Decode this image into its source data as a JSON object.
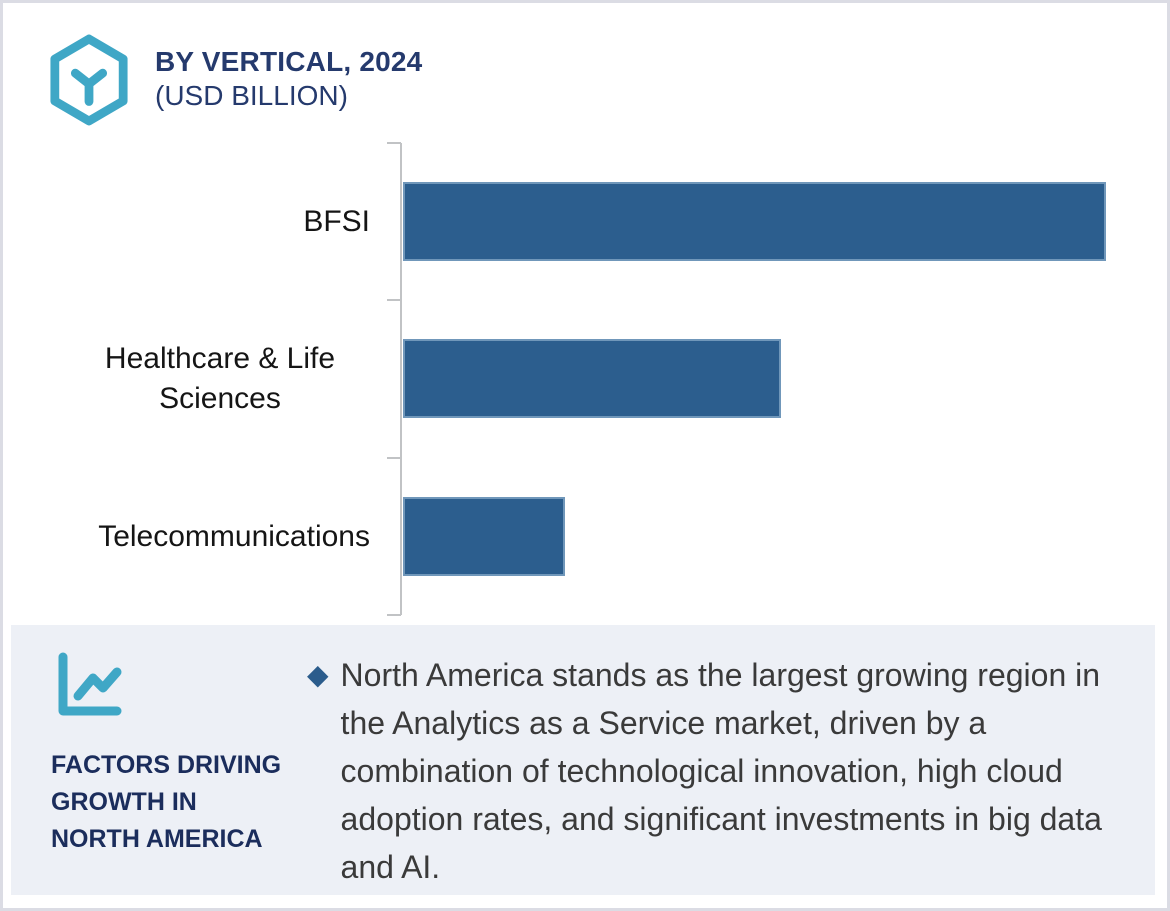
{
  "header": {
    "title_line1": "BY VERTICAL, 2024",
    "title_line2": "(USD BILLION)",
    "title_color": "#253a6d",
    "logo_icon": "hexagon-y-logo",
    "logo_color": "#3fa7c6"
  },
  "chart_data": {
    "type": "bar",
    "orientation": "horizontal",
    "title": "BY VERTICAL, 2024 (USD BILLION)",
    "categories": [
      "BFSI",
      "Healthcare & Life Sciences",
      "Telecommunications"
    ],
    "values_normalized": [
      1.0,
      0.538,
      0.23
    ],
    "value_labels_visible": false,
    "axis_tick_labels_visible": false,
    "grid": false,
    "legend": false,
    "bar_color": "#2c5e8e",
    "axis_color": "#c1c3c5"
  },
  "callout": {
    "icon": "line-chart-icon",
    "icon_color": "#3fa7c6",
    "panel_bg": "#edf0f6",
    "heading_lines": [
      "FACTORS DRIVING",
      "GROWTH IN",
      "NORTH AMERICA"
    ],
    "heading_color": "#1b2d5c",
    "bullet_marker": "◆",
    "bullet_color": "#2b5c8c",
    "body_color": "#3a3a3a",
    "bullet_text": "North America stands as the largest growing region in the Analytics as a Service market, driven by a combination of technological innovation, high cloud adoption rates, and significant investments in big data and AI."
  }
}
